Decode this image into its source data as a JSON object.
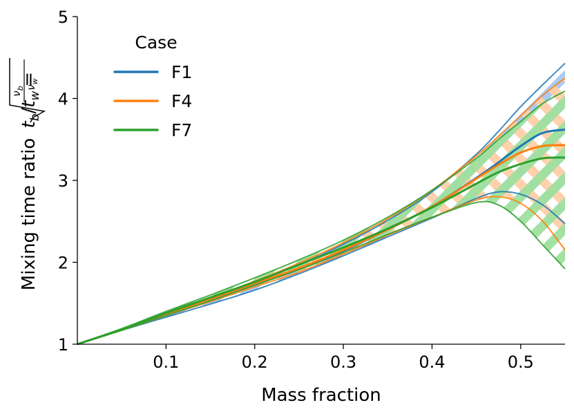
{
  "chart_data": {
    "type": "line",
    "title": "",
    "xlabel": "Mass fraction",
    "ylabel_text": "Mixing time ratio",
    "ylabel_formula": {
      "tb": "t",
      "tb_sub": "b",
      "slash": "/",
      "tw": "t",
      "tw_sub": "w",
      "eq": "=",
      "nu_b": "ν",
      "nu_b_sub": "b",
      "nu_w": "ν",
      "nu_w_sub": "w"
    },
    "xlim": [
      0.0,
      0.55
    ],
    "ylim": [
      1,
      5
    ],
    "xticks": [
      0.1,
      0.2,
      0.3,
      0.4,
      0.5
    ],
    "xtick_labels": [
      "0.1",
      "0.2",
      "0.3",
      "0.4",
      "0.5"
    ],
    "yticks": [
      1,
      2,
      3,
      4,
      5
    ],
    "ytick_labels": [
      "1",
      "2",
      "3",
      "4",
      "5"
    ],
    "grid": false,
    "legend": {
      "title": "Case",
      "placement": "top-left"
    },
    "x": [
      0.0,
      0.05,
      0.1,
      0.15,
      0.2,
      0.25,
      0.3,
      0.35,
      0.4,
      0.45,
      0.475,
      0.5,
      0.525,
      0.55
    ],
    "series": [
      {
        "name": "F1",
        "color": "#1f77b4",
        "band_color": "#a6c8f0",
        "center": [
          1.0,
          1.18,
          1.37,
          1.55,
          1.73,
          1.92,
          2.14,
          2.4,
          2.68,
          3.03,
          3.22,
          3.42,
          3.58,
          3.62
        ],
        "upper": [
          1.0,
          1.18,
          1.38,
          1.57,
          1.76,
          1.97,
          2.22,
          2.51,
          2.86,
          3.32,
          3.6,
          3.9,
          4.17,
          4.43
        ],
        "lower": [
          1.0,
          1.17,
          1.33,
          1.49,
          1.66,
          1.86,
          2.08,
          2.31,
          2.54,
          2.78,
          2.86,
          2.83,
          2.7,
          2.47
        ]
      },
      {
        "name": "F4",
        "color": "#ff7f0e",
        "band_color": "#ffcfa8",
        "center": [
          1.0,
          1.18,
          1.37,
          1.55,
          1.74,
          1.93,
          2.15,
          2.4,
          2.68,
          3.02,
          3.19,
          3.34,
          3.42,
          3.43
        ],
        "upper": [
          1.0,
          1.18,
          1.38,
          1.57,
          1.77,
          1.99,
          2.24,
          2.53,
          2.88,
          3.3,
          3.54,
          3.79,
          4.04,
          4.25
        ],
        "lower": [
          1.0,
          1.17,
          1.35,
          1.52,
          1.7,
          1.88,
          2.1,
          2.33,
          2.55,
          2.76,
          2.8,
          2.72,
          2.5,
          2.15
        ]
      },
      {
        "name": "F7",
        "color": "#2ca02c",
        "band_color": "#9fe09f",
        "center": [
          1.0,
          1.18,
          1.38,
          1.57,
          1.76,
          1.97,
          2.18,
          2.41,
          2.67,
          2.96,
          3.1,
          3.2,
          3.27,
          3.28
        ],
        "upper": [
          1.0,
          1.19,
          1.4,
          1.6,
          1.81,
          2.03,
          2.27,
          2.55,
          2.88,
          3.27,
          3.5,
          3.72,
          3.94,
          4.09
        ],
        "lower": [
          1.0,
          1.17,
          1.35,
          1.53,
          1.72,
          1.91,
          2.12,
          2.34,
          2.55,
          2.73,
          2.7,
          2.5,
          2.21,
          1.92
        ]
      }
    ]
  }
}
